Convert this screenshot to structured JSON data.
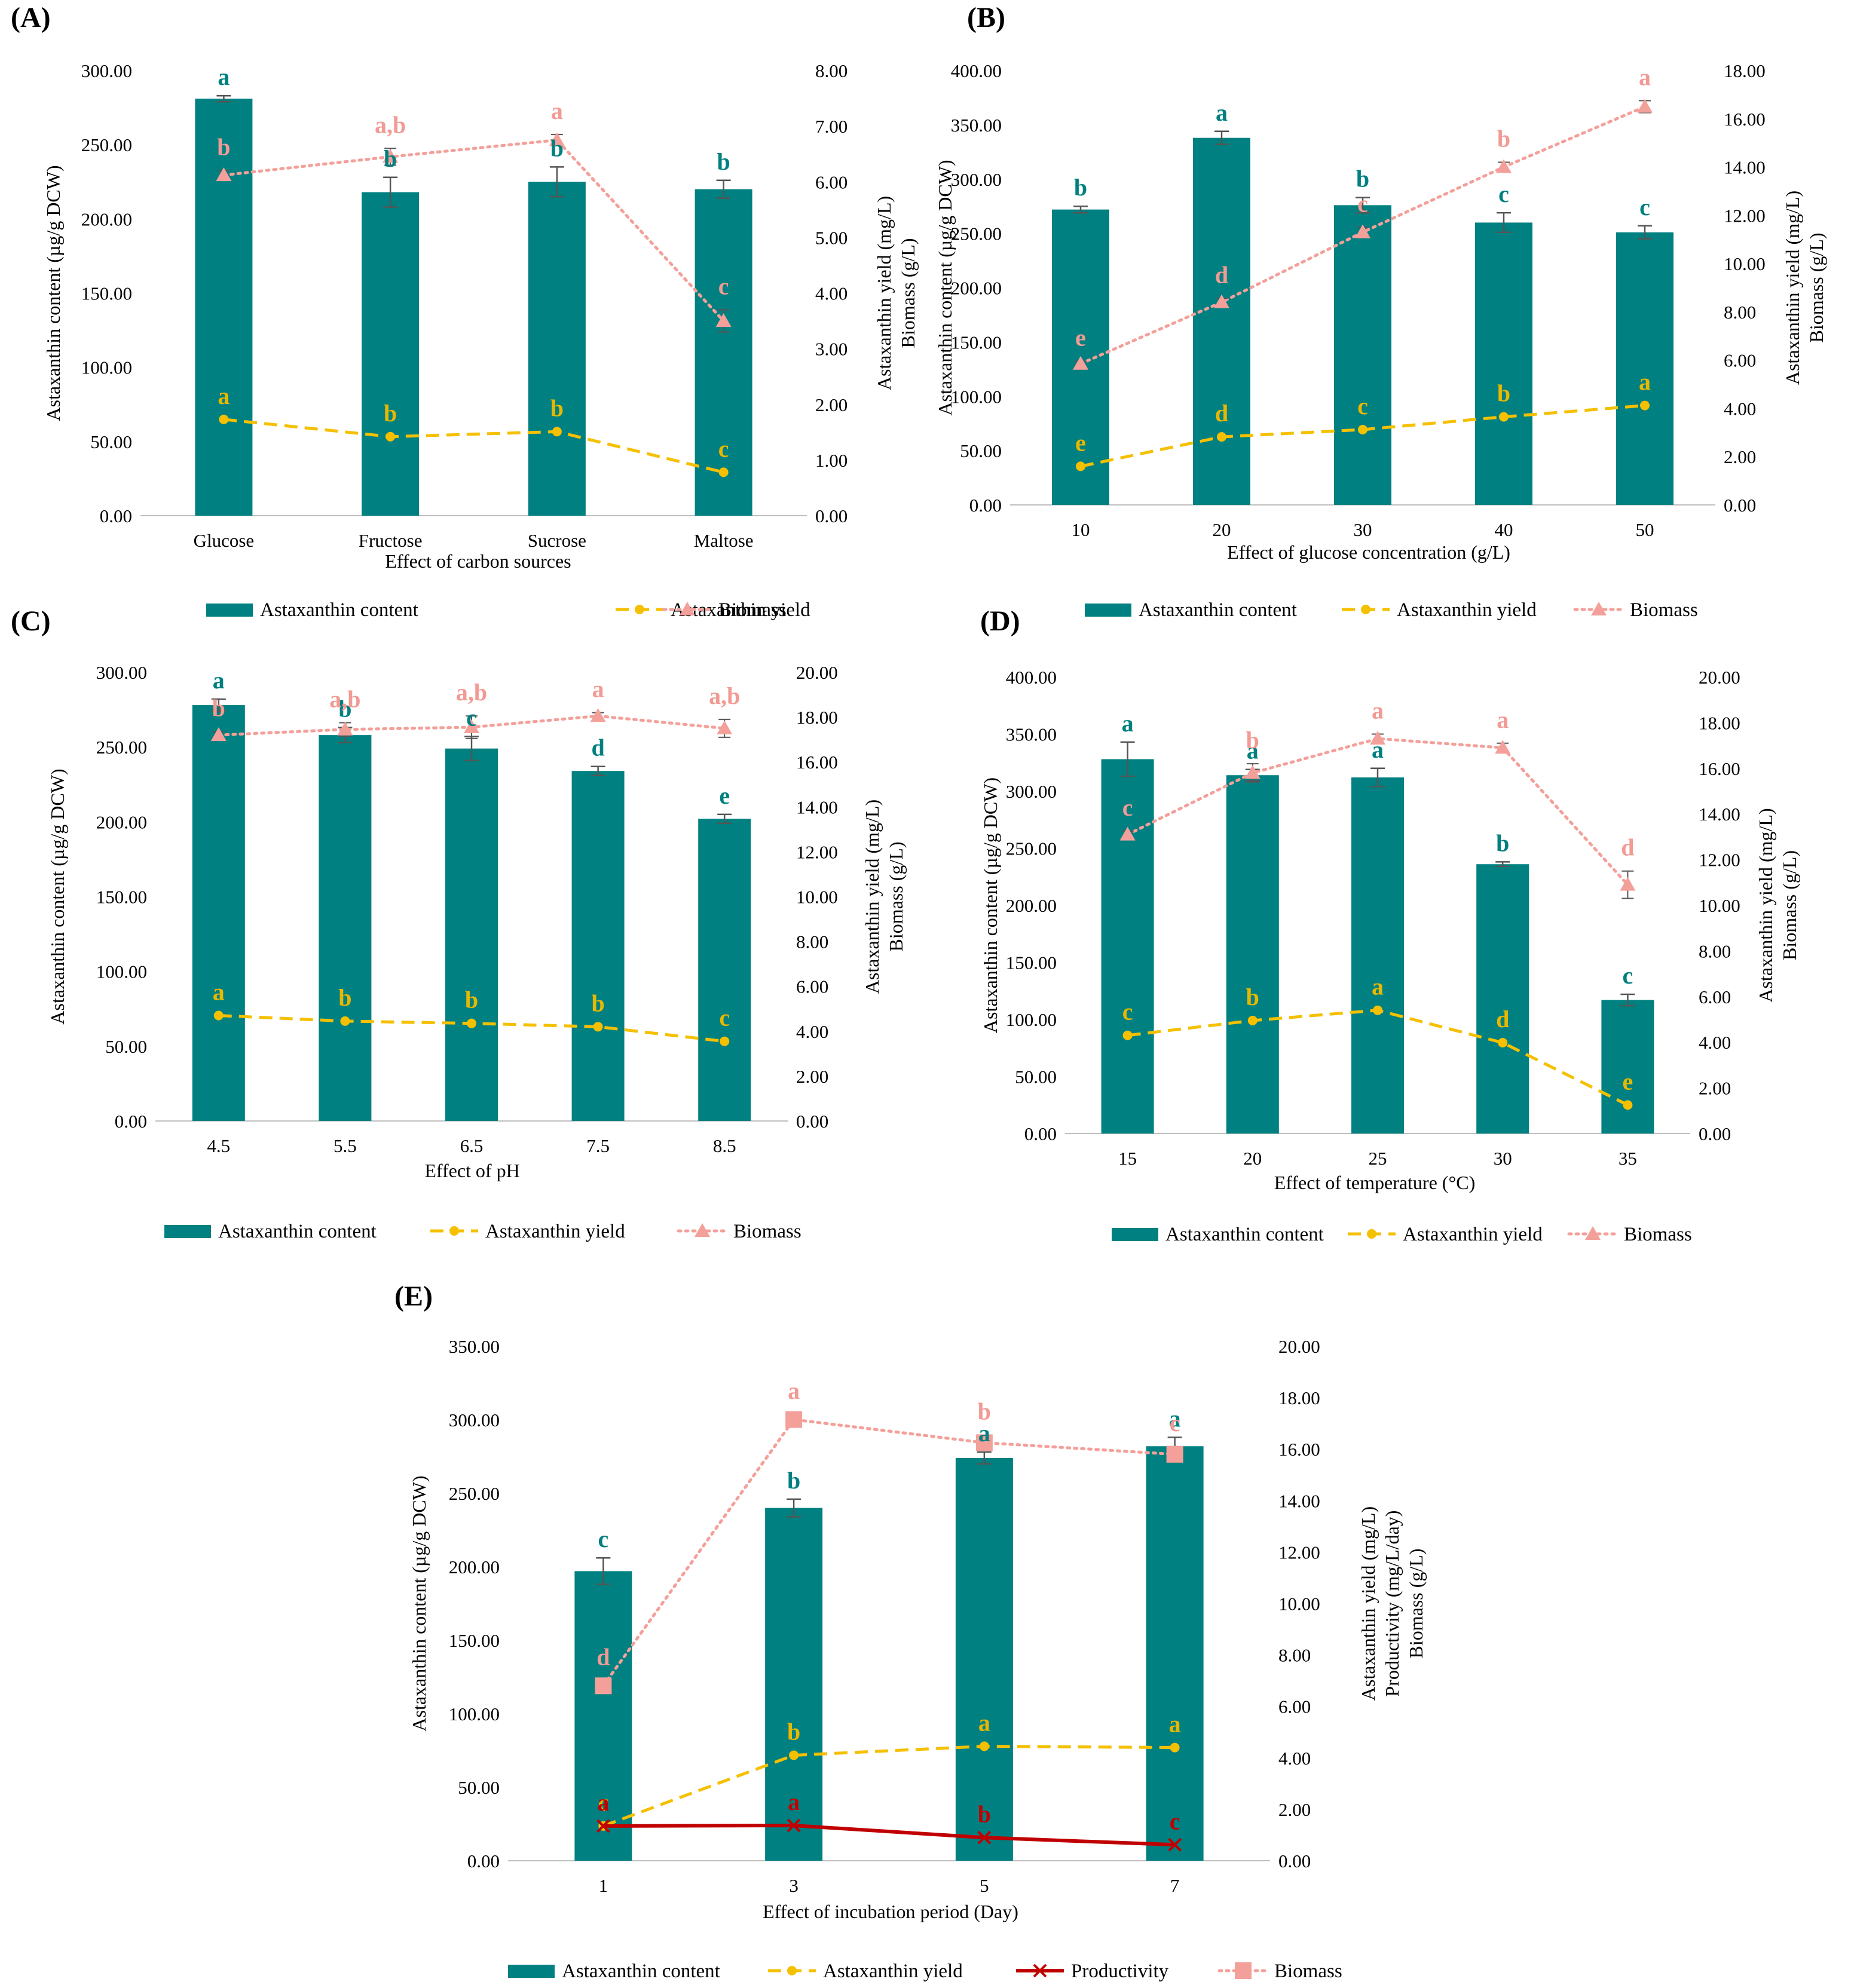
{
  "colors": {
    "content": "#008080",
    "yield": "#F5C000",
    "biomass": "#F4A09A",
    "productivity": "#C00000",
    "sig_content": "#008080",
    "sig_yield": "#E8B800",
    "sig_biomass": "#F29A94",
    "sig_productivity": "#C00000"
  },
  "chart_data": [
    {
      "panel": "(A)",
      "type": "bar+line",
      "xlabel": "Effect of carbon sources",
      "ylabel_left": [
        "Astaxanthin content (µg/g DCW)"
      ],
      "ylabel_right": [
        "Astaxanthin yield (mg/L)",
        "Biomass (g/L)"
      ],
      "left_range": [
        0,
        300
      ],
      "left_step": 50,
      "right_range": [
        0,
        8
      ],
      "right_step": 1,
      "categories": [
        "Glucose",
        "Fructose",
        "Sucrose",
        "Maltose"
      ],
      "series": [
        {
          "key": "content",
          "name": "Astaxanthin content",
          "kind": "bar",
          "axis": "left",
          "values": [
            281,
            218,
            225,
            220
          ],
          "errors": [
            2,
            10,
            10,
            6
          ],
          "letters": [
            "a",
            "b",
            "b",
            "b"
          ]
        },
        {
          "key": "yield",
          "name": "Astaxanthin yield",
          "kind": "line",
          "axis": "right",
          "values": [
            1.73,
            1.42,
            1.51,
            0.78
          ],
          "letters": [
            "a",
            "b",
            "b",
            "c"
          ]
        },
        {
          "key": "biomass",
          "name": "Biomass",
          "kind": "line",
          "axis": "right",
          "values": [
            6.12,
            6.45,
            6.75,
            3.5
          ],
          "errors": [
            0.08,
            0.15,
            0.1,
            0.2
          ],
          "letters": [
            "b",
            "a,b",
            "a",
            "c"
          ]
        }
      ]
    },
    {
      "panel": "(B)",
      "type": "bar+line",
      "xlabel": "Effect of glucose concentration (g/L)",
      "ylabel_left": [
        "Astaxanthin content (µg/g DCW)"
      ],
      "ylabel_right": [
        "Astaxanthin yield (mg/L)",
        "Biomass (g/L)"
      ],
      "left_range": [
        0,
        400
      ],
      "left_step": 50,
      "right_range": [
        0,
        18
      ],
      "right_step": 2,
      "categories": [
        "10",
        "20",
        "30",
        "40",
        "50"
      ],
      "series": [
        {
          "key": "content",
          "name": "Astaxanthin content",
          "kind": "bar",
          "axis": "left",
          "values": [
            272,
            338,
            276,
            260,
            251
          ],
          "errors": [
            3,
            6,
            7,
            9,
            6
          ],
          "letters": [
            "b",
            "a",
            "b",
            "c",
            "c"
          ]
        },
        {
          "key": "yield",
          "name": "Astaxanthin yield",
          "kind": "line",
          "axis": "right",
          "values": [
            1.6,
            2.82,
            3.12,
            3.65,
            4.12
          ],
          "letters": [
            "e",
            "d",
            "c",
            "b",
            "a"
          ]
        },
        {
          "key": "biomass",
          "name": "Biomass",
          "kind": "line",
          "axis": "right",
          "values": [
            5.85,
            8.4,
            11.3,
            14.0,
            16.5
          ],
          "errors": [
            0.1,
            0.15,
            0.2,
            0.2,
            0.25
          ],
          "letters": [
            "e",
            "d",
            "c",
            "b",
            "a"
          ]
        }
      ]
    },
    {
      "panel": "(C)",
      "type": "bar+line",
      "xlabel": "Effect of pH",
      "ylabel_left": [
        "Astaxanthin content (µg/g DCW)"
      ],
      "ylabel_right": [
        "Astaxanthin yield (mg/L)",
        "Biomass (g/L)"
      ],
      "left_range": [
        0,
        300
      ],
      "left_step": 50,
      "right_range": [
        0,
        20
      ],
      "right_step": 2,
      "categories": [
        "4.5",
        "5.5",
        "6.5",
        "7.5",
        "8.5"
      ],
      "series": [
        {
          "key": "content",
          "name": "Astaxanthin content",
          "kind": "bar",
          "axis": "left",
          "values": [
            278,
            258,
            249,
            234,
            202
          ],
          "errors": [
            4,
            5,
            8,
            3,
            3
          ],
          "letters": [
            "a",
            "b",
            "c",
            "d",
            "e"
          ]
        },
        {
          "key": "yield",
          "name": "Astaxanthin yield",
          "kind": "line",
          "axis": "right",
          "values": [
            4.7,
            4.45,
            4.35,
            4.2,
            3.55
          ],
          "letters": [
            "a",
            "b",
            "b",
            "b",
            "c"
          ]
        },
        {
          "key": "biomass",
          "name": "Biomass",
          "kind": "line",
          "axis": "right",
          "values": [
            17.2,
            17.45,
            17.55,
            18.05,
            17.5
          ],
          "errors": [
            0.15,
            0.3,
            0.5,
            0.15,
            0.4
          ],
          "letters": [
            "b",
            "a,b",
            "a,b",
            "a",
            "a,b"
          ]
        }
      ]
    },
    {
      "panel": "(D)",
      "type": "bar+line",
      "xlabel": "Effect of temperature (°C)",
      "ylabel_left": [
        "Astaxanthin content (µg/g DCW)"
      ],
      "ylabel_right": [
        "Astaxanthin yield (mg/L)",
        "Biomass (g/L)"
      ],
      "left_range": [
        0,
        400
      ],
      "left_step": 50,
      "right_range": [
        0,
        20
      ],
      "right_step": 2,
      "categories": [
        "15",
        "20",
        "25",
        "30",
        "35"
      ],
      "series": [
        {
          "key": "content",
          "name": "Astaxanthin content",
          "kind": "bar",
          "axis": "left",
          "values": [
            328,
            314,
            312,
            236,
            117
          ],
          "errors": [
            15,
            5,
            8,
            2,
            5
          ],
          "letters": [
            "a",
            "a",
            "a",
            "b",
            "c"
          ]
        },
        {
          "key": "yield",
          "name": "Astaxanthin yield",
          "kind": "line",
          "axis": "right",
          "values": [
            4.3,
            4.95,
            5.4,
            3.98,
            1.25
          ],
          "letters": [
            "c",
            "b",
            "a",
            "d",
            "e"
          ]
        },
        {
          "key": "biomass",
          "name": "Biomass",
          "kind": "line",
          "axis": "right",
          "values": [
            13.1,
            15.8,
            17.3,
            16.9,
            10.9
          ],
          "errors": [
            0.15,
            0.4,
            0.2,
            0.2,
            0.6
          ],
          "letters": [
            "c",
            "b",
            "a",
            "a",
            "d"
          ]
        }
      ]
    },
    {
      "panel": "(E)",
      "type": "bar+line",
      "xlabel": "Effect of incubation period (Day)",
      "ylabel_left": [
        "Astaxanthin content (µg/g DCW)"
      ],
      "ylabel_right": [
        "Astaxanthin yield (mg/L)",
        "Productivity (mg/L/day)",
        "Biomass (g/L)"
      ],
      "left_range": [
        0,
        350
      ],
      "left_step": 50,
      "right_range": [
        0,
        20
      ],
      "right_step": 2,
      "categories": [
        "1",
        "3",
        "5",
        "7"
      ],
      "series": [
        {
          "key": "content",
          "name": "Astaxanthin content",
          "kind": "bar",
          "axis": "left",
          "values": [
            197,
            240,
            274,
            282
          ],
          "errors": [
            9,
            6,
            4,
            6
          ],
          "letters": [
            "c",
            "b",
            "a",
            "a"
          ]
        },
        {
          "key": "yield",
          "name": "Astaxanthin yield",
          "kind": "line",
          "axis": "right",
          "values": [
            1.35,
            4.1,
            4.45,
            4.4
          ],
          "letters": [
            "c",
            "b",
            "a",
            "a"
          ]
        },
        {
          "key": "productivity",
          "name": "Productivity",
          "kind": "line",
          "axis": "right",
          "values": [
            1.35,
            1.37,
            0.9,
            0.62
          ],
          "letters": [
            "a",
            "a",
            "b",
            "c"
          ]
        },
        {
          "key": "biomass",
          "name": "Biomass",
          "kind": "line",
          "axis": "right",
          "values": [
            6.8,
            17.15,
            16.25,
            15.8
          ],
          "errors": [
            0.2,
            0.2,
            0.3,
            0.3
          ],
          "letters": [
            "d",
            "a",
            "b",
            "c"
          ]
        }
      ]
    }
  ]
}
